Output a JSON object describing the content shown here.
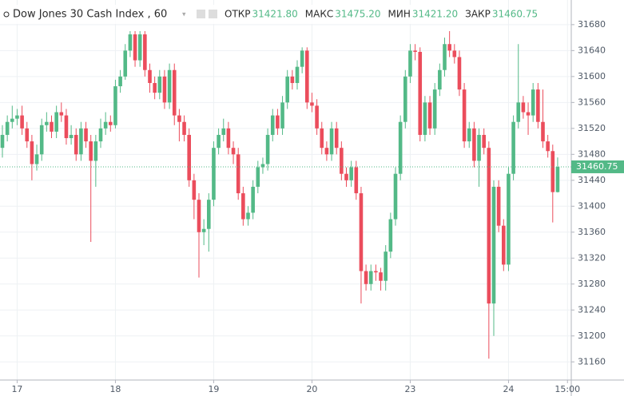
{
  "chart_data": {
    "type": "candlestick",
    "title": "Dow Jones 30 Cash Index , 60",
    "stats": [
      {
        "label": "ОТКР",
        "value": "31421.80"
      },
      {
        "label": "МАКС",
        "value": "31475.20"
      },
      {
        "label": "МИН",
        "value": "31421.20"
      },
      {
        "label": "ЗАКР",
        "value": "31460.75"
      }
    ],
    "up_color": "#53b987",
    "down_color": "#eb4d5c",
    "grid": true,
    "ylim": [
      31132,
      31718
    ],
    "yticks": [
      31160,
      31200,
      31240,
      31280,
      31320,
      31360,
      31400,
      31440,
      31480,
      31520,
      31560,
      31600,
      31640,
      31680
    ],
    "categories": [
      null,
      null,
      null,
      "17",
      null,
      null,
      null,
      null,
      null,
      null,
      null,
      null,
      null,
      null,
      null,
      null,
      null,
      null,
      null,
      null,
      null,
      null,
      null,
      "18",
      null,
      null,
      null,
      null,
      null,
      null,
      null,
      null,
      null,
      null,
      null,
      null,
      null,
      null,
      null,
      null,
      null,
      null,
      null,
      "19",
      null,
      null,
      null,
      null,
      null,
      null,
      null,
      null,
      null,
      null,
      null,
      null,
      null,
      null,
      null,
      null,
      null,
      null,
      null,
      "20",
      null,
      null,
      null,
      null,
      null,
      null,
      null,
      null,
      null,
      null,
      null,
      null,
      null,
      null,
      null,
      null,
      null,
      null,
      null,
      "23",
      null,
      null,
      null,
      null,
      null,
      null,
      null,
      null,
      null,
      null,
      null,
      null,
      null,
      null,
      null,
      null,
      null,
      null,
      null,
      "24",
      null,
      null,
      null,
      null,
      null,
      null,
      null,
      null,
      null,
      null,
      null,
      "15:00"
    ],
    "open": [
      31490,
      31510,
      31530,
      31535,
      31540,
      31520,
      31500,
      31465,
      31480,
      31525,
      31530,
      31515,
      31545,
      31540,
      31505,
      31510,
      31480,
      31520,
      31500,
      31470,
      31500,
      31520,
      31530,
      31525,
      31585,
      31600,
      31640,
      31665,
      31625,
      31665,
      31610,
      31590,
      31575,
      31600,
      31560,
      31610,
      31540,
      31530,
      31510,
      31440,
      31410,
      31360,
      31365,
      31410,
      31490,
      31510,
      31520,
      31490,
      31480,
      31420,
      31380,
      31390,
      31430,
      31460,
      31465,
      31510,
      31540,
      31520,
      31560,
      31600,
      31590,
      31615,
      31640,
      31560,
      31555,
      31520,
      31490,
      31480,
      31520,
      31490,
      31450,
      31440,
      31460,
      31420,
      31300,
      31280,
      31300,
      31298,
      31285,
      31330,
      31380,
      31450,
      31530,
      31600,
      31640,
      31638,
      31510,
      31560,
      31520,
      31580,
      31610,
      31650,
      31640,
      31630,
      31580,
      31500,
      31520,
      31470,
      31510,
      31490,
      31250,
      31430,
      31370,
      31310,
      31450,
      31530,
      31560,
      31545,
      31540,
      31580,
      31530,
      31500,
      31485,
      31421.8,
      null,
      null
    ],
    "high": [
      31525,
      31540,
      31555,
      31550,
      31555,
      31530,
      31510,
      31495,
      31535,
      31545,
      31540,
      31555,
      31560,
      31550,
      31525,
      31520,
      31530,
      31530,
      31510,
      31510,
      31535,
      31545,
      31540,
      31595,
      31610,
      31650,
      31670,
      31670,
      31670,
      31670,
      31620,
      31600,
      31610,
      31610,
      31620,
      31620,
      31550,
      31540,
      31520,
      31450,
      31420,
      31380,
      31420,
      31500,
      31520,
      31535,
      31530,
      31500,
      31490,
      31430,
      31400,
      31440,
      31470,
      31475,
      31520,
      31550,
      31550,
      31570,
      31610,
      31610,
      31625,
      31645,
      31645,
      31575,
      31565,
      31530,
      31500,
      31530,
      31530,
      31500,
      31460,
      31470,
      31470,
      31430,
      31310,
      31310,
      31310,
      31305,
      31340,
      31390,
      31460,
      31540,
      31610,
      31650,
      31650,
      31645,
      31570,
      31570,
      31590,
      31620,
      31660,
      31670,
      31650,
      31640,
      31590,
      31530,
      31530,
      31520,
      31520,
      31500,
      31440,
      31440,
      31380,
      31460,
      31540,
      31650,
      31570,
      31560,
      31590,
      31590,
      31580,
      31510,
      31495,
      31475.2,
      null,
      null
    ],
    "low": [
      31475,
      31500,
      31520,
      31525,
      31510,
      31490,
      31440,
      31455,
      31470,
      31515,
      31505,
      31505,
      31530,
      31495,
      31495,
      31470,
      31470,
      31490,
      31345,
      31430,
      31490,
      31510,
      31515,
      31520,
      31575,
      31595,
      31630,
      31615,
      31615,
      31600,
      31575,
      31565,
      31565,
      31550,
      31550,
      31525,
      31500,
      31500,
      31430,
      31380,
      31290,
      31340,
      31330,
      31400,
      31480,
      31500,
      31480,
      31465,
      31410,
      31370,
      31370,
      31380,
      31420,
      31450,
      31455,
      31500,
      31510,
      31510,
      31550,
      31580,
      31580,
      31605,
      31550,
      31545,
      31510,
      31480,
      31470,
      31470,
      31480,
      31440,
      31430,
      31430,
      31410,
      31250,
      31270,
      31270,
      31285,
      31270,
      31270,
      31320,
      31370,
      31440,
      31520,
      31590,
      31625,
      31500,
      31500,
      31510,
      31510,
      31570,
      31600,
      31630,
      31620,
      31570,
      31490,
      31490,
      31460,
      31430,
      31480,
      31165,
      31200,
      31360,
      31300,
      31300,
      31440,
      31520,
      31535,
      31510,
      31530,
      31520,
      31490,
      31475,
      31375,
      31421.2,
      null,
      null
    ],
    "close": [
      31510,
      31530,
      31535,
      31540,
      31520,
      31500,
      31465,
      31480,
      31525,
      31530,
      31515,
      31545,
      31540,
      31505,
      31510,
      31480,
      31520,
      31500,
      31470,
      31500,
      31520,
      31530,
      31525,
      31585,
      31600,
      31640,
      31665,
      31625,
      31665,
      31610,
      31590,
      31575,
      31600,
      31560,
      31610,
      31540,
      31530,
      31510,
      31440,
      31410,
      31360,
      31365,
      31410,
      31490,
      31510,
      31520,
      31490,
      31480,
      31420,
      31380,
      31390,
      31430,
      31460,
      31465,
      31510,
      31540,
      31520,
      31560,
      31600,
      31590,
      31615,
      31640,
      31560,
      31555,
      31520,
      31490,
      31480,
      31520,
      31490,
      31450,
      31440,
      31460,
      31420,
      31300,
      31280,
      31300,
      31298,
      31285,
      31330,
      31380,
      31450,
      31530,
      31600,
      31640,
      31638,
      31510,
      31560,
      31520,
      31580,
      31610,
      31650,
      31640,
      31630,
      31580,
      31500,
      31520,
      31470,
      31510,
      31490,
      31250,
      31430,
      31370,
      31310,
      31450,
      31530,
      31560,
      31545,
      31540,
      31580,
      31530,
      31500,
      31485,
      31421.8,
      31460.75,
      null,
      null
    ]
  }
}
